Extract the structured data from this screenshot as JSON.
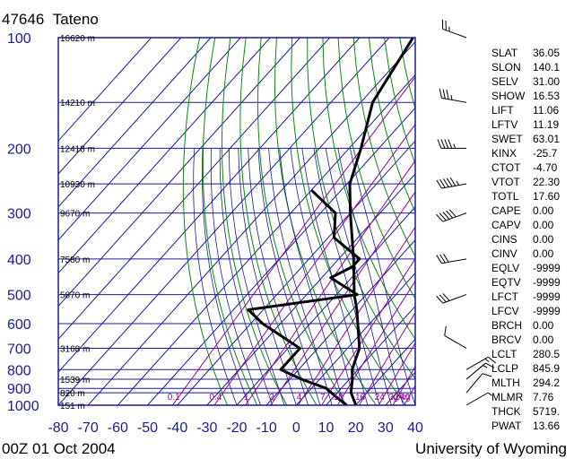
{
  "header": {
    "station_id": "47646",
    "station_name": "Tateno"
  },
  "footer": {
    "time": "00Z 01 Oct 2004",
    "source": "University of Wyoming"
  },
  "chart_data": {
    "type": "skew-t log-p",
    "pressure_levels": [
      {
        "p": 100,
        "label": "100",
        "height_label": "16620 m"
      },
      {
        "p": 150,
        "label": "",
        "height_label": "14210 m"
      },
      {
        "p": 200,
        "label": "200",
        "height_label": "12418 m"
      },
      {
        "p": 250,
        "label": "",
        "height_label": "10930 m"
      },
      {
        "p": 300,
        "label": "300",
        "height_label": "9670 m"
      },
      {
        "p": 400,
        "label": "400",
        "height_label": "7580 m"
      },
      {
        "p": 500,
        "label": "500",
        "height_label": "5870 m"
      },
      {
        "p": 600,
        "label": "600",
        "height_label": ""
      },
      {
        "p": 700,
        "label": "700",
        "height_label": "3168 m"
      },
      {
        "p": 800,
        "label": "800",
        "height_label": ""
      },
      {
        "p": 850,
        "label": "",
        "height_label": "1539 m"
      },
      {
        "p": 900,
        "label": "900",
        "height_label": ""
      },
      {
        "p": 925,
        "label": "",
        "height_label": "820 m"
      },
      {
        "p": 1000,
        "label": "1000",
        "height_label": "151 m"
      }
    ],
    "temperature_ticks": [
      "-80",
      "-70",
      "-60",
      "-50",
      "-40",
      "-30",
      "-20",
      "-10",
      "0",
      "10",
      "20",
      "30",
      "40"
    ],
    "xlim": [
      -80,
      40
    ],
    "ylim": [
      1000,
      100
    ],
    "mixing_ratio_labels": [
      "0.1",
      "0.4",
      "1",
      "2",
      "4",
      "7",
      "10",
      "16",
      "24",
      "32",
      "40",
      "g/kg"
    ],
    "temperature_profile": [
      {
        "p": 1000,
        "t": 20.0
      },
      {
        "p": 950,
        "t": 16.5
      },
      {
        "p": 925,
        "t": 14.6
      },
      {
        "p": 850,
        "t": 11.0
      },
      {
        "p": 800,
        "t": 8.0
      },
      {
        "p": 700,
        "t": 4.0
      },
      {
        "p": 600,
        "t": -4.0
      },
      {
        "p": 550,
        "t": -8.5
      },
      {
        "p": 500,
        "t": -14.0
      },
      {
        "p": 400,
        "t": -25.0
      },
      {
        "p": 300,
        "t": -40.0
      },
      {
        "p": 250,
        "t": -49.0
      },
      {
        "p": 200,
        "t": -56.0
      },
      {
        "p": 150,
        "t": -66.0
      },
      {
        "p": 100,
        "t": -72.0
      }
    ],
    "dewpoint_profile": [
      {
        "p": 1000,
        "t": 17.0
      },
      {
        "p": 950,
        "t": 11.0
      },
      {
        "p": 900,
        "t": 5.0
      },
      {
        "p": 850,
        "t": -6.0
      },
      {
        "p": 800,
        "t": -16.0
      },
      {
        "p": 700,
        "t": -16.0
      },
      {
        "p": 600,
        "t": -36.0
      },
      {
        "p": 550,
        "t": -45.0
      },
      {
        "p": 500,
        "t": -13.0
      },
      {
        "p": 450,
        "t": -27.0
      },
      {
        "p": 420,
        "t": -23.0
      },
      {
        "p": 400,
        "t": -23.0
      },
      {
        "p": 350,
        "t": -38.0
      },
      {
        "p": 300,
        "t": -45.0
      },
      {
        "p": 260,
        "t": -60.0
      }
    ],
    "indices": [
      {
        "key": "SLAT",
        "value": "36.05"
      },
      {
        "key": "SLON",
        "value": "140.1"
      },
      {
        "key": "SELV",
        "value": "31.00"
      },
      {
        "key": "SHOW",
        "value": "16.53"
      },
      {
        "key": "LIFT",
        "value": "11.06"
      },
      {
        "key": "LFTV",
        "value": "11.19"
      },
      {
        "key": "SWET",
        "value": "63.01"
      },
      {
        "key": "KINX",
        "value": "-25.7"
      },
      {
        "key": "CTOT",
        "value": "-4.70"
      },
      {
        "key": "VTOT",
        "value": "22.30"
      },
      {
        "key": "TOTL",
        "value": "17.60"
      },
      {
        "key": "CAPE",
        "value": "0.00"
      },
      {
        "key": "CAPV",
        "value": "0.00"
      },
      {
        "key": "CINS",
        "value": "0.00"
      },
      {
        "key": "CINV",
        "value": "0.00"
      },
      {
        "key": "EQLV",
        "value": "-9999"
      },
      {
        "key": "EQTV",
        "value": "-9999"
      },
      {
        "key": "LFCT",
        "value": "-9999"
      },
      {
        "key": "LFCV",
        "value": "-9999"
      },
      {
        "key": "BRCH",
        "value": "0.00"
      },
      {
        "key": "BRCV",
        "value": "0.00"
      },
      {
        "key": "LCLT",
        "value": "280.5"
      },
      {
        "key": "LCLP",
        "value": "845.9"
      },
      {
        "key": "MLTH",
        "value": "294.2"
      },
      {
        "key": "MLMR",
        "value": "7.76"
      },
      {
        "key": "THCK",
        "value": "5719."
      },
      {
        "key": "PWAT",
        "value": "13.66"
      }
    ],
    "wind_barbs": [
      {
        "p": 100,
        "dir": 290,
        "kt": 25
      },
      {
        "p": 150,
        "dir": 280,
        "kt": 35
      },
      {
        "p": 200,
        "dir": 270,
        "kt": 45
      },
      {
        "p": 250,
        "dir": 260,
        "kt": 55
      },
      {
        "p": 300,
        "dir": 250,
        "kt": 50
      },
      {
        "p": 400,
        "dir": 260,
        "kt": 30
      },
      {
        "p": 500,
        "dir": 250,
        "kt": 30
      },
      {
        "p": 700,
        "dir": 300,
        "kt": 10
      },
      {
        "p": 800,
        "dir": 60,
        "kt": 15
      },
      {
        "p": 850,
        "dir": 50,
        "kt": 15
      },
      {
        "p": 925,
        "dir": 40,
        "kt": 10
      },
      {
        "p": 1000,
        "dir": 60,
        "kt": 5
      }
    ],
    "colors": {
      "frame": "#1a1a99",
      "isotherm": "#1a1a99",
      "isobar": "#1a1a99",
      "dry_adiabat": "#0a8a0a",
      "moist_adiabat": "#1a1a99",
      "mixing_ratio": "#990099",
      "profile": "#000000",
      "axis_text": "#1a1a99",
      "mixing_label": "#990099"
    }
  }
}
